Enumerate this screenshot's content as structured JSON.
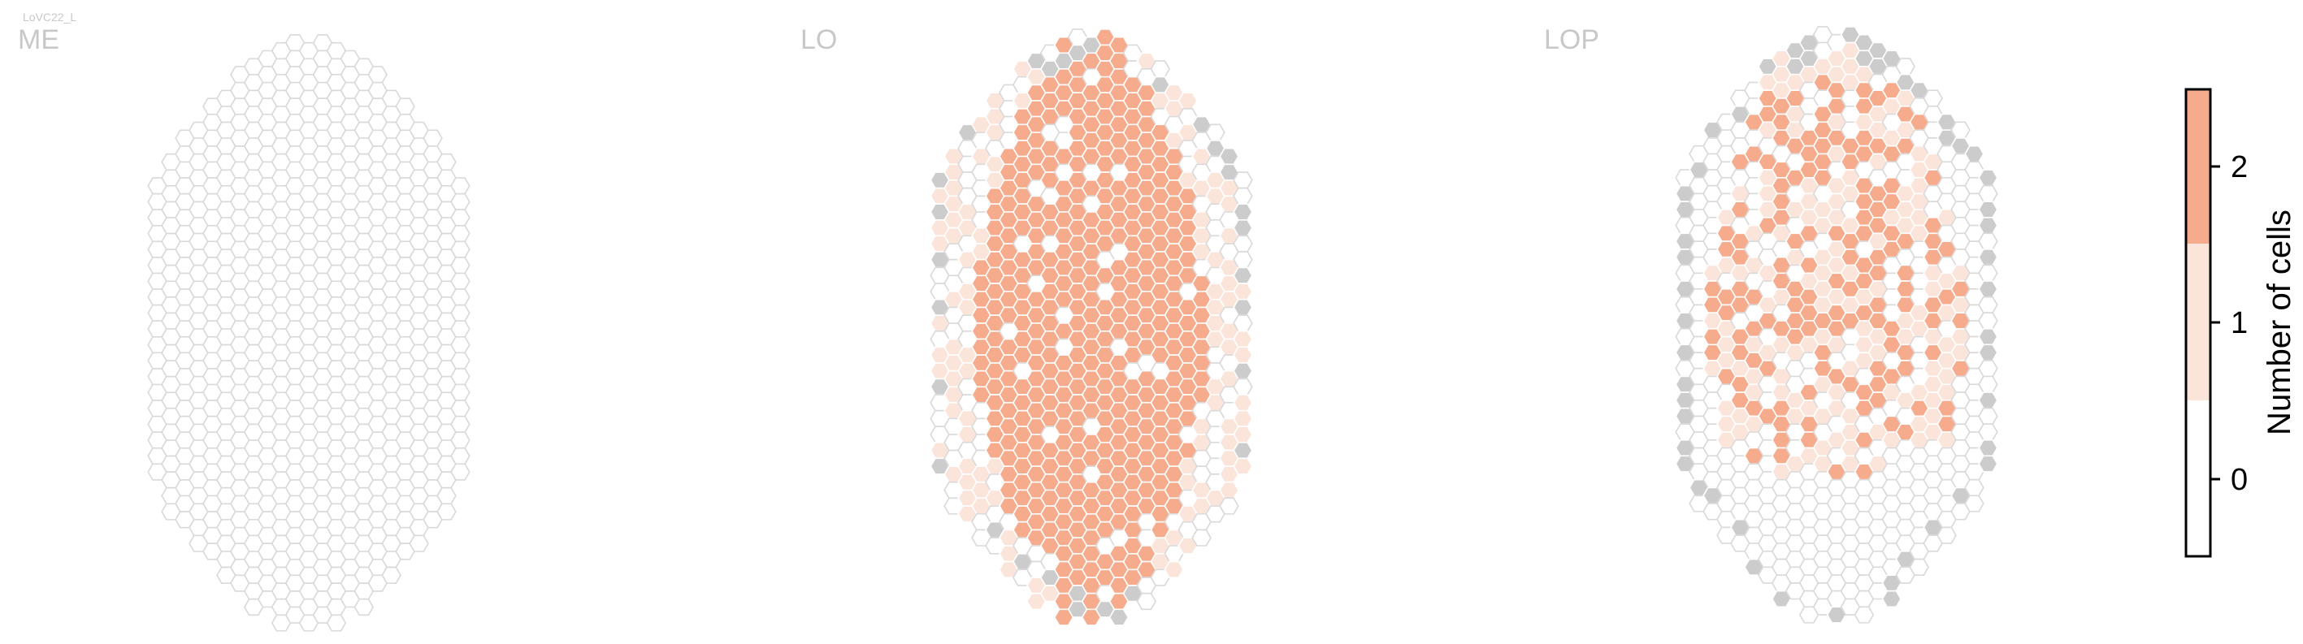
{
  "chart_data": {
    "type": "heatmap",
    "title": "LoVC22_L",
    "panels": [
      {
        "name": "ME"
      },
      {
        "name": "LO"
      },
      {
        "name": "LOP"
      }
    ],
    "colorbar": {
      "label": "Number of cells",
      "ticks": [
        "0",
        "1",
        "2"
      ],
      "categories": [
        {
          "value": 0,
          "color": "#ffffff"
        },
        {
          "value": 1,
          "color": "#fbe4da"
        },
        {
          "value": 2,
          "color": "#f6ab8c"
        }
      ],
      "range": [
        -0.5,
        2.5
      ]
    },
    "colors": {
      "zero_fill": "#ffffff",
      "zero_stroke": "#d9d9d9",
      "one_fill": "#fbe4da",
      "two_fill": "#f6ab8c",
      "no_data_fill": "#cccccc",
      "panel_label": "#c8c8c8"
    }
  }
}
